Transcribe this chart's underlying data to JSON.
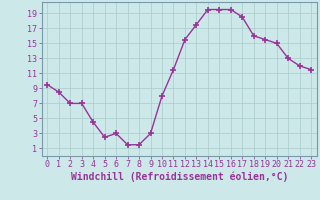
{
  "x": [
    0,
    1,
    2,
    3,
    4,
    5,
    6,
    7,
    8,
    9,
    10,
    11,
    12,
    13,
    14,
    15,
    16,
    17,
    18,
    19,
    20,
    21,
    22,
    23
  ],
  "y": [
    9.5,
    8.5,
    7.0,
    7.0,
    4.5,
    2.5,
    3.0,
    1.5,
    1.5,
    3.0,
    8.0,
    11.5,
    15.5,
    17.5,
    19.5,
    19.5,
    19.5,
    18.5,
    16.0,
    15.5,
    15.0,
    13.0,
    12.0,
    11.5
  ],
  "line_color": "#993399",
  "marker": "+",
  "markersize": 4,
  "markeredgewidth": 1.2,
  "linewidth": 1.0,
  "background_color": "#cce8e8",
  "grid_color": "#aacccc",
  "xlabel": "Windchill (Refroidissement éolien,°C)",
  "xlabel_color": "#993399",
  "xlabel_fontsize": 7,
  "ytick_labels": [
    "1",
    "3",
    "5",
    "7",
    "9",
    "11",
    "13",
    "15",
    "17",
    "19"
  ],
  "yticks": [
    1,
    3,
    5,
    7,
    9,
    11,
    13,
    15,
    17,
    19
  ],
  "xticks": [
    0,
    1,
    2,
    3,
    4,
    5,
    6,
    7,
    8,
    9,
    10,
    11,
    12,
    13,
    14,
    15,
    16,
    17,
    18,
    19,
    20,
    21,
    22,
    23
  ],
  "ylim": [
    0,
    20.5
  ],
  "xlim": [
    -0.5,
    23.5
  ],
  "tick_color": "#993399",
  "tick_fontsize": 6,
  "spine_color": "#7799aa"
}
